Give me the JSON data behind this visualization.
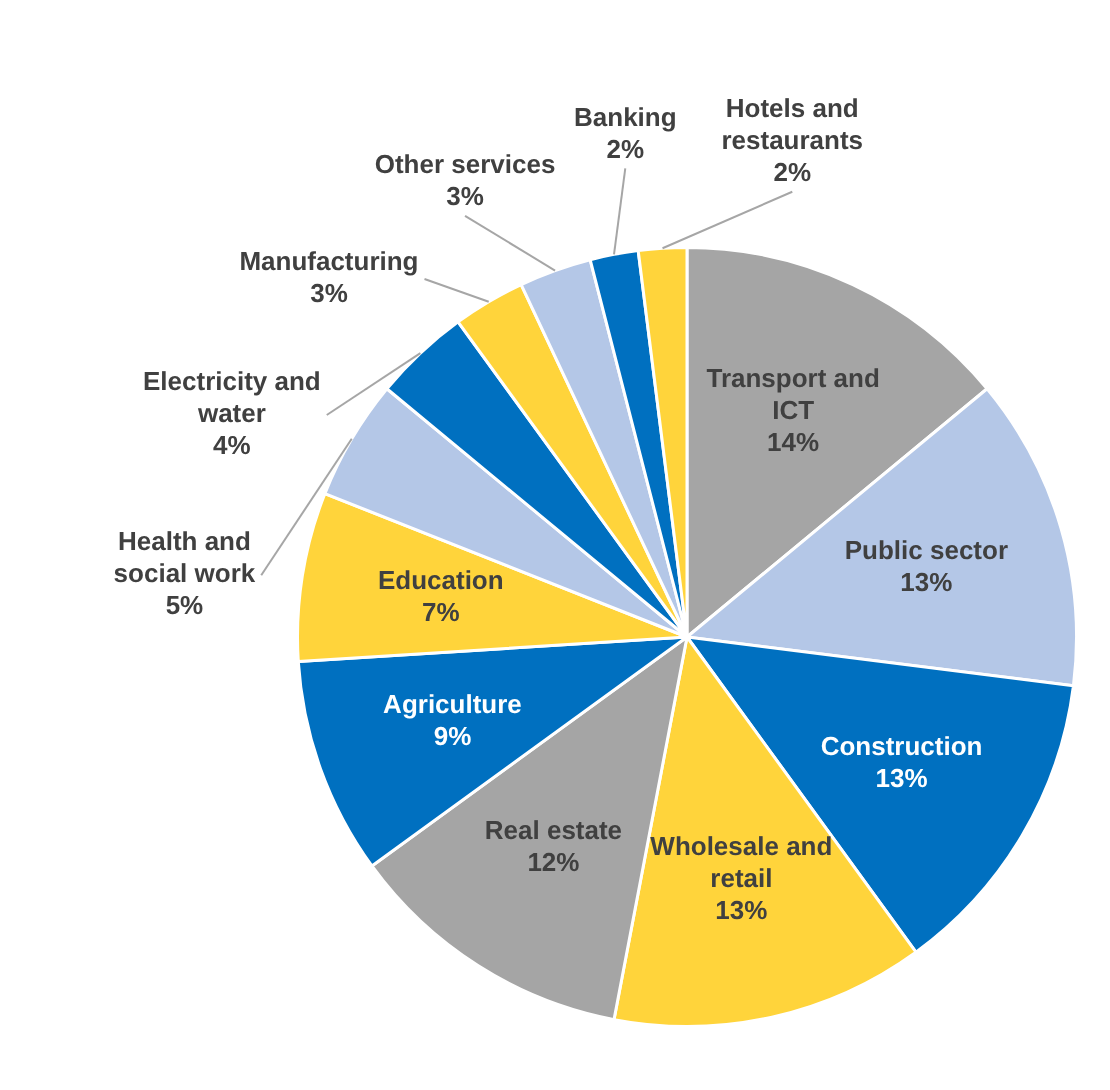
{
  "chart_data": {
    "type": "pie",
    "categories": [
      "Transport and ICT",
      "Public sector",
      "Construction",
      "Wholesale and retail",
      "Real estate",
      "Agriculture",
      "Education",
      "Health and social work",
      "Electricity and water",
      "Manufacturing",
      "Other services",
      "Banking",
      "Hotels and restaurants"
    ],
    "values": [
      14,
      13,
      13,
      13,
      12,
      9,
      7,
      5,
      4,
      3,
      3,
      2,
      2
    ],
    "value_labels": [
      "14%",
      "13%",
      "13%",
      "13%",
      "12%",
      "9%",
      "7%",
      "5%",
      "4%",
      "3%",
      "3%",
      "2%",
      "2%"
    ],
    "colors": [
      "#a5a5a5",
      "#b4c7e7",
      "#0070c0",
      "#ffd43b",
      "#a5a5a5",
      "#0070c0",
      "#ffd43b",
      "#b4c7e7",
      "#0070c0",
      "#ffd43b",
      "#b4c7e7",
      "#0070c0",
      "#ffd43b"
    ],
    "legend": false
  }
}
